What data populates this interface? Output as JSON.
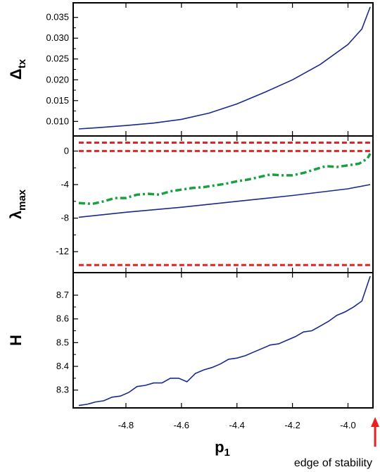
{
  "chart_data": [
    {
      "type": "line",
      "ylabel": "Δ",
      "ylabel_sub": "tx",
      "ylim": [
        0.0065,
        0.0385
      ],
      "yticks": [
        0.01,
        0.015,
        0.02,
        0.025,
        0.03,
        0.035
      ],
      "ytick_labels": [
        "0.010",
        "0.015",
        "0.020",
        "0.025",
        "0.030",
        "0.035"
      ],
      "grid": false,
      "series": [
        {
          "color": "#1a2a8c",
          "style": "solid",
          "x": [
            -4.97,
            -4.9,
            -4.8,
            -4.7,
            -4.6,
            -4.5,
            -4.4,
            -4.3,
            -4.2,
            -4.1,
            -4.0,
            -3.95,
            -3.92
          ],
          "values": [
            0.0082,
            0.0085,
            0.009,
            0.0096,
            0.0105,
            0.012,
            0.0142,
            0.017,
            0.02,
            0.0237,
            0.0285,
            0.0322,
            0.0375
          ]
        }
      ]
    },
    {
      "type": "line",
      "ylabel": "λ",
      "ylabel_sub": "max",
      "ylim": [
        -14.5,
        1.8
      ],
      "yticks": [
        0,
        -4,
        -8,
        -12
      ],
      "ytick_labels": [
        "0",
        "-4",
        "-8",
        "-12"
      ],
      "grid": false,
      "series": [
        {
          "color": "#1a2a8c",
          "style": "solid",
          "x": [
            -4.97,
            -4.8,
            -4.6,
            -4.4,
            -4.2,
            -4.0,
            -3.92
          ],
          "values": [
            -7.9,
            -7.3,
            -6.7,
            -6.0,
            -5.3,
            -4.5,
            -4.0
          ]
        },
        {
          "color": "#1aa040",
          "style": "dashdot",
          "x": [
            -4.97,
            -4.92,
            -4.88,
            -4.84,
            -4.8,
            -4.76,
            -4.72,
            -4.68,
            -4.64,
            -4.6,
            -4.56,
            -4.52,
            -4.48,
            -4.44,
            -4.4,
            -4.36,
            -4.32,
            -4.28,
            -4.24,
            -4.2,
            -4.16,
            -4.12,
            -4.08,
            -4.04,
            -4.0,
            -3.96,
            -3.93,
            -3.92
          ],
          "values": [
            -6.2,
            -6.3,
            -6.0,
            -5.6,
            -5.6,
            -5.2,
            -5.1,
            -5.2,
            -4.8,
            -4.6,
            -4.4,
            -4.3,
            -4.1,
            -3.9,
            -3.6,
            -3.4,
            -3.1,
            -2.8,
            -2.9,
            -2.9,
            -2.6,
            -2.2,
            -1.8,
            -1.9,
            -1.7,
            -1.5,
            -0.9,
            -0.3
          ]
        },
        {
          "color": "#e82020",
          "style": "dashed",
          "x": [
            -4.97,
            -3.92
          ],
          "values": [
            1.0,
            1.0
          ]
        },
        {
          "color": "#e82020",
          "style": "dashed",
          "x": [
            -4.97,
            -3.92
          ],
          "values": [
            0.0,
            0.0
          ]
        },
        {
          "color": "#e82020",
          "style": "dashed",
          "x": [
            -4.97,
            -3.92
          ],
          "values": [
            -13.6,
            -13.6
          ]
        }
      ]
    },
    {
      "type": "line",
      "ylabel": "H",
      "ylabel_sub": "",
      "ylim": [
        8.225,
        8.795
      ],
      "yticks": [
        8.3,
        8.4,
        8.5,
        8.6,
        8.7
      ],
      "ytick_labels": [
        "8.3",
        "8.4",
        "8.5",
        "8.6",
        "8.7"
      ],
      "xlabel": "p",
      "xlabel_sub": "1",
      "xlim": [
        -4.99,
        -3.91
      ],
      "xticks": [
        -4.8,
        -4.6,
        -4.4,
        -4.2,
        -4.0
      ],
      "xtick_labels": [
        "-4.8",
        "-4.6",
        "-4.4",
        "-4.2",
        "-4.0"
      ],
      "grid": false,
      "series": [
        {
          "color": "#1a2a8c",
          "style": "solid",
          "x": [
            -4.97,
            -4.94,
            -4.91,
            -4.88,
            -4.85,
            -4.82,
            -4.79,
            -4.76,
            -4.73,
            -4.7,
            -4.67,
            -4.64,
            -4.61,
            -4.58,
            -4.55,
            -4.52,
            -4.49,
            -4.46,
            -4.43,
            -4.4,
            -4.37,
            -4.34,
            -4.31,
            -4.28,
            -4.25,
            -4.22,
            -4.19,
            -4.16,
            -4.13,
            -4.1,
            -4.07,
            -4.04,
            -4.01,
            -3.98,
            -3.95,
            -3.92
          ],
          "values": [
            8.235,
            8.24,
            8.25,
            8.255,
            8.27,
            8.275,
            8.29,
            8.315,
            8.32,
            8.33,
            8.33,
            8.35,
            8.35,
            8.335,
            8.37,
            8.385,
            8.395,
            8.41,
            8.43,
            8.435,
            8.445,
            8.46,
            8.475,
            8.49,
            8.495,
            8.51,
            8.525,
            8.545,
            8.55,
            8.57,
            8.59,
            8.615,
            8.63,
            8.65,
            8.675,
            8.78
          ]
        }
      ]
    }
  ],
  "annotation": {
    "text": "edge of stability",
    "arrow_color": "#e82020",
    "x": -3.92
  }
}
